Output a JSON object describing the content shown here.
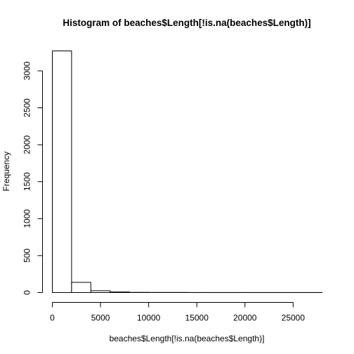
{
  "chart_data": {
    "type": "bar",
    "title": "Histogram of beaches$Length[!is.na(beaches$Length)]",
    "xlabel": "beaches$Length[!is.na(beaches$Length)]",
    "ylabel": "Frequency",
    "bins": [
      {
        "start": 0,
        "end": 2000,
        "count": 3270
      },
      {
        "start": 2000,
        "end": 4000,
        "count": 138
      },
      {
        "start": 4000,
        "end": 6000,
        "count": 25
      },
      {
        "start": 6000,
        "end": 8000,
        "count": 8
      },
      {
        "start": 8000,
        "end": 10000,
        "count": 3
      },
      {
        "start": 10000,
        "end": 12000,
        "count": 2
      },
      {
        "start": 12000,
        "end": 14000,
        "count": 2
      },
      {
        "start": 14000,
        "end": 16000,
        "count": 1
      },
      {
        "start": 16000,
        "end": 18000,
        "count": 1
      },
      {
        "start": 18000,
        "end": 20000,
        "count": 1
      },
      {
        "start": 20000,
        "end": 22000,
        "count": 1
      },
      {
        "start": 22000,
        "end": 24000,
        "count": 1
      },
      {
        "start": 24000,
        "end": 26000,
        "count": 1
      },
      {
        "start": 26000,
        "end": 28000,
        "count": 1
      }
    ],
    "xticks": [
      0,
      5000,
      10000,
      15000,
      20000,
      25000
    ],
    "yticks": [
      0,
      500,
      1000,
      1500,
      2000,
      2500,
      3000
    ],
    "xlim": [
      0,
      28000
    ],
    "ylim": [
      0,
      3270
    ],
    "grid": false
  }
}
